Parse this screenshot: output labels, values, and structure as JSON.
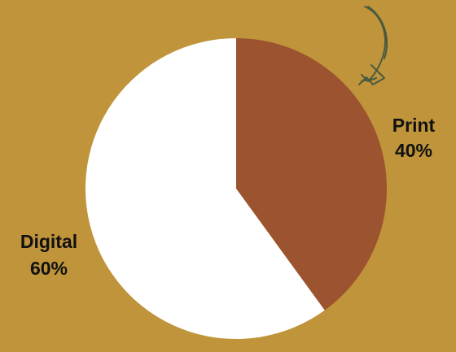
{
  "chart_data": {
    "type": "pie",
    "start_angle_deg": 0,
    "direction": "clockwise",
    "slices": [
      {
        "label": "Print",
        "value": 40,
        "value_label": "40%",
        "color": "#9C532F"
      },
      {
        "label": "Digital",
        "value": 60,
        "value_label": "60%",
        "color": "#FFFFFF"
      }
    ]
  },
  "colors": {
    "background": "#C0943A",
    "arrow": "#4A5A3E"
  },
  "decoration": {
    "arrow_icon": "hand-drawn-curved-arrow-icon"
  }
}
